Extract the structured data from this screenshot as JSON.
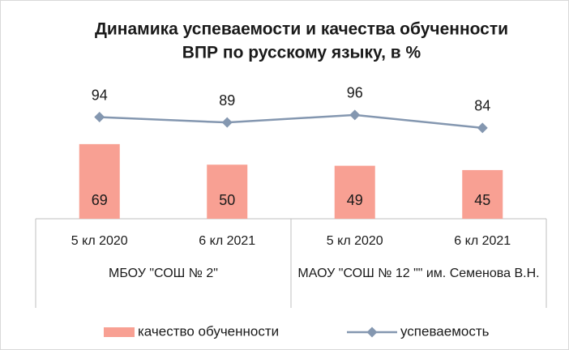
{
  "chart_data": {
    "type": "bar_line",
    "title_lines": [
      "Динамика успеваемости и качества обученности",
      "ВПР по русскому языку, в %"
    ],
    "categories": [
      "5 кл 2020",
      "6 кл 2021",
      "5 кл 2020",
      "6 кл 2021"
    ],
    "groups": [
      "МБОУ \"СОШ № 2\"",
      "МАОУ \"СОШ № 12 \"\" им. Семенова В.Н."
    ],
    "series": [
      {
        "name": "качество обученности",
        "type": "bar",
        "color": "#f8a093",
        "values": [
          69,
          50,
          49,
          45
        ]
      },
      {
        "name": "успеваемость",
        "type": "line",
        "color": "#8497b0",
        "values": [
          94,
          89,
          96,
          84
        ]
      }
    ],
    "ylim": [
      0,
      100
    ],
    "legend": "bottom"
  }
}
